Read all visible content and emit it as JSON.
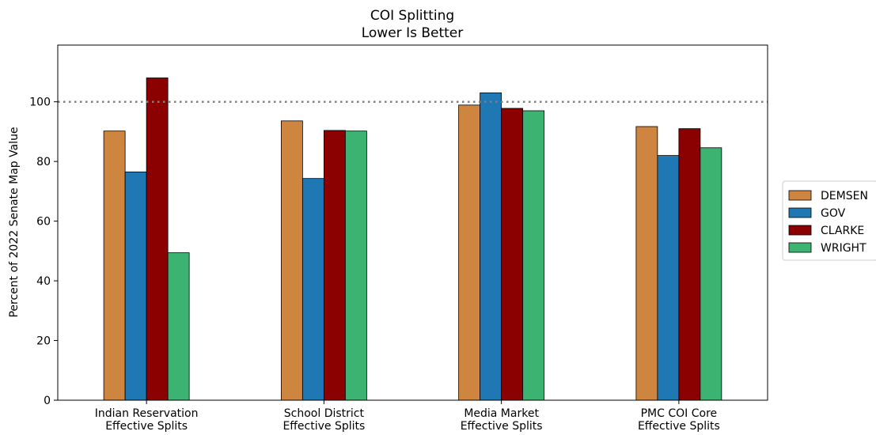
{
  "chart_data": {
    "type": "bar",
    "title": "COI Splitting",
    "subtitle": "Lower Is Better",
    "xlabel": "",
    "ylabel": "Percent of 2022 Senate Map Value",
    "categories": [
      [
        "Indian Reservation",
        "Effective Splits"
      ],
      [
        "School District",
        "Effective Splits"
      ],
      [
        "Media Market",
        "Effective Splits"
      ],
      [
        "PMC COI Core",
        "Effective Splits"
      ]
    ],
    "series": [
      {
        "name": "DEMSEN",
        "color": "#cd853f",
        "values": [
          90.2,
          93.6,
          98.9,
          91.7
        ]
      },
      {
        "name": "GOV",
        "color": "#1f77b4",
        "values": [
          76.5,
          74.3,
          103.0,
          82.0
        ]
      },
      {
        "name": "CLARKE",
        "color": "#8b0000",
        "values": [
          108.0,
          90.4,
          97.8,
          91.0
        ]
      },
      {
        "name": "WRIGHT",
        "color": "#3cb371",
        "values": [
          49.4,
          90.2,
          97.0,
          84.6
        ]
      }
    ],
    "ylim": [
      0,
      119
    ],
    "yticks": [
      0,
      20,
      40,
      60,
      80,
      100
    ],
    "reference_line": {
      "value": 100,
      "style": "dotted",
      "color": "#808080"
    },
    "legend_position": "center-right outside",
    "grid": false
  }
}
